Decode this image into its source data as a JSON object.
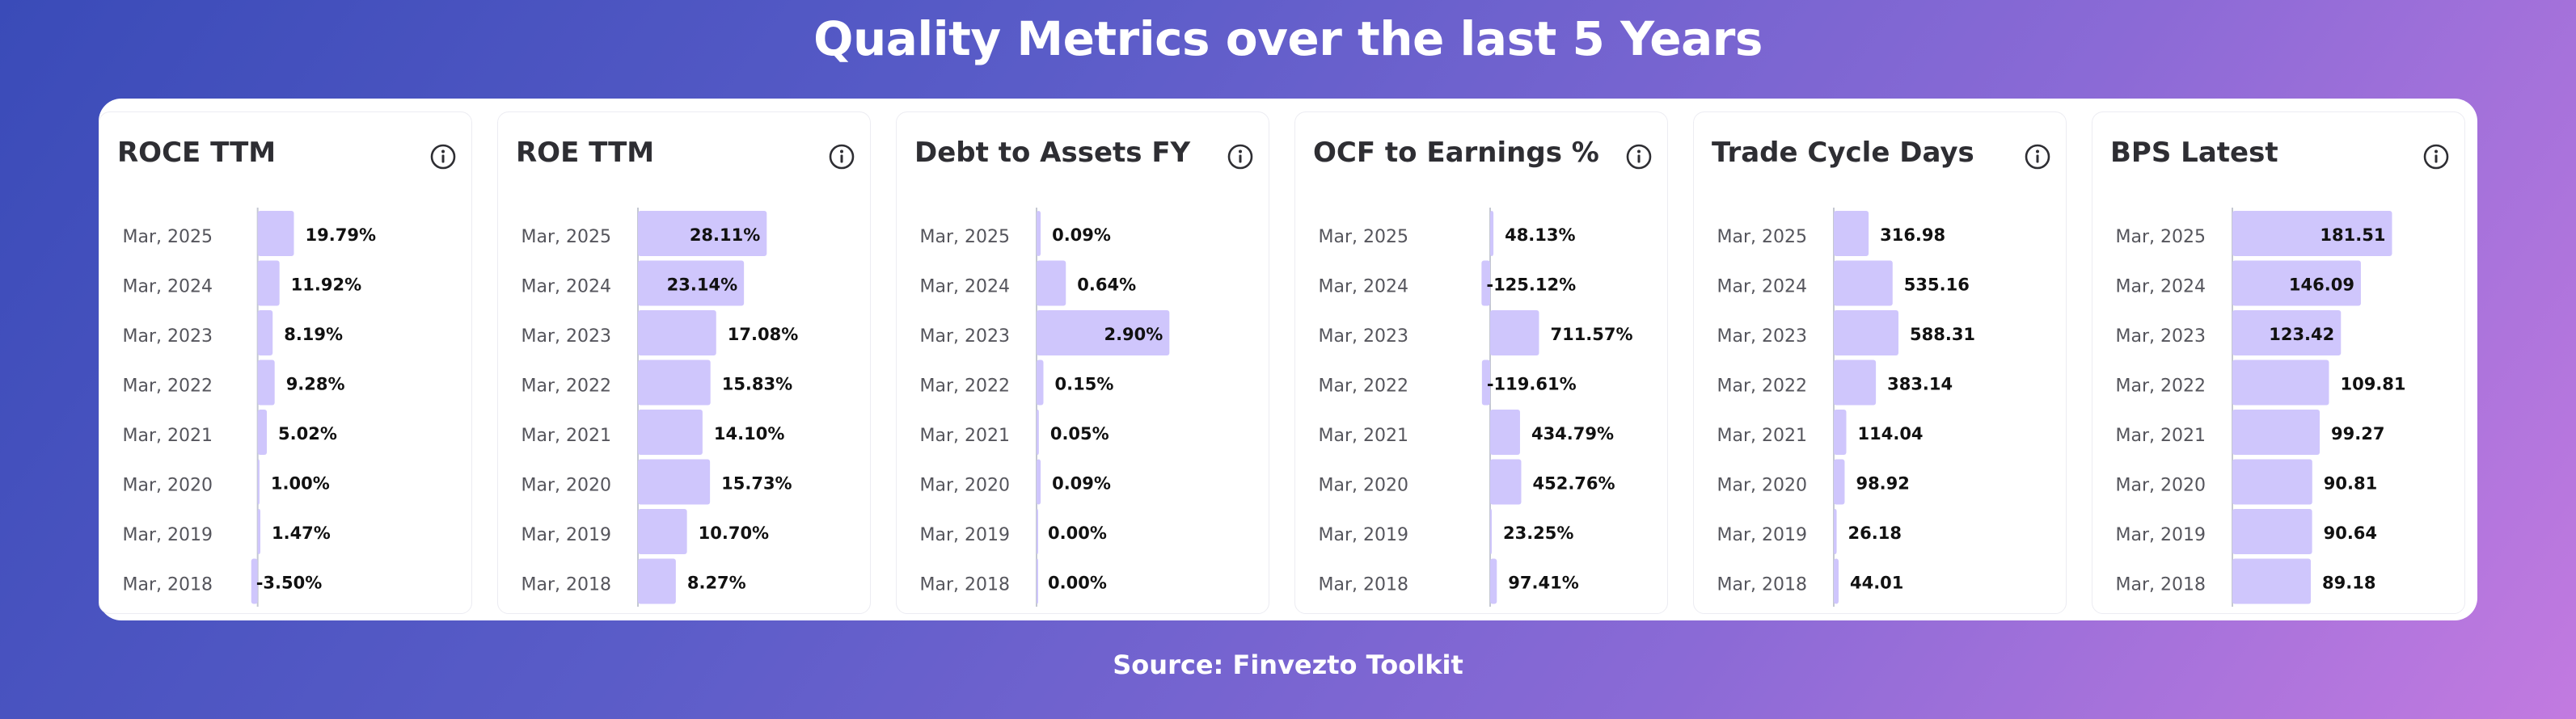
{
  "title": "Quality Metrics over the last 5 Years",
  "source": "Source: Finvezto Toolkit",
  "colors": {
    "bar": "#cfc6fc",
    "axis": "#c4c8d2",
    "label": "#55555c",
    "value": "#111111"
  },
  "chart_data": [
    {
      "type": "bar",
      "title": "ROCE TTM",
      "icon": "info-icon",
      "categories": [
        "Mar, 2025",
        "Mar, 2024",
        "Mar, 2023",
        "Mar, 2022",
        "Mar, 2021",
        "Mar, 2020",
        "Mar, 2019",
        "Mar, 2018"
      ],
      "values": [
        19.79,
        11.92,
        8.19,
        9.28,
        5.02,
        1.0,
        1.47,
        -3.5
      ],
      "labels": [
        "19.79%",
        "11.92%",
        "8.19%",
        "9.28%",
        "5.02%",
        "1.00%",
        "1.47%",
        "-3.50%"
      ],
      "xlim": [
        -10,
        110
      ]
    },
    {
      "type": "bar",
      "title": "ROE TTM",
      "icon": "info-icon",
      "categories": [
        "Mar, 2025",
        "Mar, 2024",
        "Mar, 2023",
        "Mar, 2022",
        "Mar, 2021",
        "Mar, 2020",
        "Mar, 2019",
        "Mar, 2018"
      ],
      "values": [
        28.11,
        23.14,
        17.08,
        15.83,
        14.1,
        15.73,
        10.7,
        8.27
      ],
      "labels": [
        "28.11%",
        "23.14%",
        "17.08%",
        "15.83%",
        "14.10%",
        "15.73%",
        "10.70%",
        "8.27%"
      ],
      "xlim": [
        0,
        48
      ]
    },
    {
      "type": "bar",
      "title": "Debt to Assets FY",
      "icon": "info-icon",
      "categories": [
        "Mar, 2025",
        "Mar, 2024",
        "Mar, 2023",
        "Mar, 2022",
        "Mar, 2021",
        "Mar, 2020",
        "Mar, 2019",
        "Mar, 2018"
      ],
      "values": [
        0.09,
        0.64,
        2.9,
        0.15,
        0.05,
        0.09,
        0.0,
        0.0
      ],
      "labels": [
        "0.09%",
        "0.64%",
        "2.90%",
        "0.15%",
        "0.05%",
        "0.09%",
        "0.00%",
        "0.00%"
      ],
      "xlim": [
        0,
        4.8
      ]
    },
    {
      "type": "bar",
      "title": "OCF to Earnings %",
      "icon": "info-icon",
      "categories": [
        "Mar, 2025",
        "Mar, 2024",
        "Mar, 2023",
        "Mar, 2022",
        "Mar, 2021",
        "Mar, 2020",
        "Mar, 2019",
        "Mar, 2018"
      ],
      "values": [
        48.13,
        -125.12,
        711.57,
        -119.61,
        434.79,
        452.76,
        23.25,
        97.41
      ],
      "labels": [
        "48.13%",
        "-125.12%",
        "711.57%",
        "-119.61%",
        "434.79%",
        "452.76%",
        "23.25%",
        "97.41%"
      ],
      "xlim": [
        -800,
        2400
      ]
    },
    {
      "type": "bar",
      "title": "Trade Cycle Days",
      "icon": "info-icon",
      "categories": [
        "Mar, 2025",
        "Mar, 2024",
        "Mar, 2023",
        "Mar, 2022",
        "Mar, 2021",
        "Mar, 2020",
        "Mar, 2019",
        "Mar, 2018"
      ],
      "values": [
        316.98,
        535.16,
        588.31,
        383.14,
        114.04,
        98.92,
        26.18,
        44.01
      ],
      "labels": [
        "316.98",
        "535.16",
        "588.31",
        "383.14",
        "114.04",
        "98.92",
        "26.18",
        "44.01"
      ],
      "xlim": [
        0,
        2000
      ]
    },
    {
      "type": "bar",
      "title": "BPS Latest",
      "icon": "info-icon",
      "categories": [
        "Mar, 2025",
        "Mar, 2024",
        "Mar, 2023",
        "Mar, 2022",
        "Mar, 2021",
        "Mar, 2020",
        "Mar, 2019",
        "Mar, 2018"
      ],
      "values": [
        181.51,
        146.09,
        123.42,
        109.81,
        99.27,
        90.81,
        90.64,
        89.18
      ],
      "labels": [
        "181.51",
        "146.09",
        "123.42",
        "109.81",
        "99.27",
        "90.81",
        "90.64",
        "89.18"
      ],
      "xlim": [
        0,
        250
      ]
    }
  ]
}
